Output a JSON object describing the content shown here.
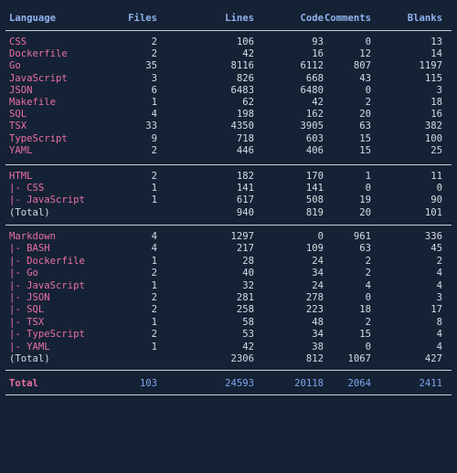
{
  "headers": [
    "Language",
    "Files",
    "Lines",
    "Code",
    "Comments",
    "Blanks"
  ],
  "section1": [
    {
      "name": "CSS",
      "files": "2",
      "lines": "106",
      "code": "93",
      "comments": "0",
      "blanks": "13"
    },
    {
      "name": "Dockerfile",
      "files": "2",
      "lines": "42",
      "code": "16",
      "comments": "12",
      "blanks": "14"
    },
    {
      "name": "Go",
      "files": "35",
      "lines": "8116",
      "code": "6112",
      "comments": "807",
      "blanks": "1197"
    },
    {
      "name": "JavaScript",
      "files": "3",
      "lines": "826",
      "code": "668",
      "comments": "43",
      "blanks": "115"
    },
    {
      "name": "JSON",
      "files": "6",
      "lines": "6483",
      "code": "6480",
      "comments": "0",
      "blanks": "3"
    },
    {
      "name": "Makefile",
      "files": "1",
      "lines": "62",
      "code": "42",
      "comments": "2",
      "blanks": "18"
    },
    {
      "name": "SQL",
      "files": "4",
      "lines": "198",
      "code": "162",
      "comments": "20",
      "blanks": "16"
    },
    {
      "name": "TSX",
      "files": "33",
      "lines": "4350",
      "code": "3905",
      "comments": "63",
      "blanks": "382"
    },
    {
      "name": "TypeScript",
      "files": "9",
      "lines": "718",
      "code": "603",
      "comments": "15",
      "blanks": "100"
    },
    {
      "name": "YAML",
      "files": "2",
      "lines": "446",
      "code": "406",
      "comments": "15",
      "blanks": "25"
    }
  ],
  "section2": [
    {
      "name": "HTML",
      "files": "2",
      "lines": "182",
      "code": "170",
      "comments": "1",
      "blanks": "11"
    },
    {
      "name": "|- CSS",
      "files": "1",
      "lines": "141",
      "code": "141",
      "comments": "0",
      "blanks": "0"
    },
    {
      "name": "|- JavaScript",
      "files": "1",
      "lines": "617",
      "code": "508",
      "comments": "19",
      "blanks": "90"
    },
    {
      "name": "(Total)",
      "files": "",
      "lines": "940",
      "code": "819",
      "comments": "20",
      "blanks": "101",
      "plain": true
    }
  ],
  "section3": [
    {
      "name": "Markdown",
      "files": "4",
      "lines": "1297",
      "code": "0",
      "comments": "961",
      "blanks": "336"
    },
    {
      "name": "|- BASH",
      "files": "4",
      "lines": "217",
      "code": "109",
      "comments": "63",
      "blanks": "45"
    },
    {
      "name": "|- Dockerfile",
      "files": "1",
      "lines": "28",
      "code": "24",
      "comments": "2",
      "blanks": "2"
    },
    {
      "name": "|- Go",
      "files": "2",
      "lines": "40",
      "code": "34",
      "comments": "2",
      "blanks": "4"
    },
    {
      "name": "|- JavaScript",
      "files": "1",
      "lines": "32",
      "code": "24",
      "comments": "4",
      "blanks": "4"
    },
    {
      "name": "|- JSON",
      "files": "2",
      "lines": "281",
      "code": "278",
      "comments": "0",
      "blanks": "3"
    },
    {
      "name": "|- SQL",
      "files": "2",
      "lines": "258",
      "code": "223",
      "comments": "18",
      "blanks": "17"
    },
    {
      "name": "|- TSX",
      "files": "1",
      "lines": "58",
      "code": "48",
      "comments": "2",
      "blanks": "8"
    },
    {
      "name": "|- TypeScript",
      "files": "2",
      "lines": "53",
      "code": "34",
      "comments": "15",
      "blanks": "4"
    },
    {
      "name": "|- YAML",
      "files": "1",
      "lines": "42",
      "code": "38",
      "comments": "0",
      "blanks": "4"
    },
    {
      "name": "(Total)",
      "files": "",
      "lines": "2306",
      "code": "812",
      "comments": "1067",
      "blanks": "427",
      "plain": true
    }
  ],
  "total": {
    "name": "Total",
    "files": "103",
    "lines": "24593",
    "code": "20118",
    "comments": "2064",
    "blanks": "2411"
  },
  "colors": {
    "background": "#152235",
    "header": "#8fb3ee",
    "language": "#ea6fa4",
    "text": "#d6dbe3",
    "total_numbers": "#7fa6ec",
    "separator": "#c9ced6"
  }
}
